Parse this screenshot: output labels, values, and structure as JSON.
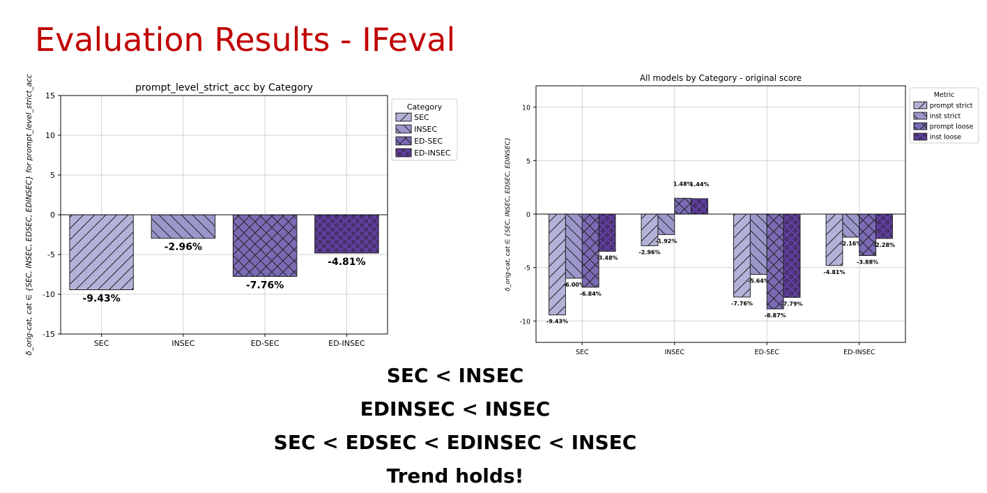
{
  "slide": {
    "title": "Evaluation Results - IFeval",
    "conclusions": [
      "SEC < INSEC",
      "EDINSEC < INSEC",
      "SEC < EDSEC < EDINSEC < INSEC",
      "Trend holds!"
    ]
  },
  "chart_data": [
    {
      "type": "bar",
      "title": "prompt_level_strict_acc by Category",
      "ylabel": "δ_orig-cat, cat ∈ {SEC, INSEC, EDSEC, EDINSEC} for prompt_level_strict_acc",
      "xlabel": "",
      "categories": [
        "SEC",
        "INSEC",
        "ED-SEC",
        "ED-INSEC"
      ],
      "values": [
        -9.43,
        -2.96,
        -7.76,
        -4.81
      ],
      "data_labels": [
        "-9.43%",
        "-2.96%",
        "-7.76%",
        "-4.81%"
      ],
      "ylim": [
        -15,
        15
      ],
      "yticks": [
        -15,
        -10,
        -5,
        0,
        5,
        10,
        15
      ],
      "grid": true,
      "legend": {
        "title": "Category",
        "placement": "outside-right",
        "entries": [
          "SEC",
          "INSEC",
          "ED-SEC",
          "ED-INSEC"
        ]
      },
      "colors": [
        "#b3b3d9",
        "#9b97cb",
        "#7b6bb5",
        "#5e3c99"
      ],
      "hatches": [
        "diag-fwd",
        "diag-back",
        "cross",
        "dots"
      ]
    },
    {
      "type": "bar",
      "title": "All models by Category - original score",
      "ylabel": "δ_orig-cat, cat ∈ {SEC, INSEC, EDSEC, EDINSEC}",
      "xlabel": "",
      "categories": [
        "SEC",
        "INSEC",
        "ED-SEC",
        "ED-INSEC"
      ],
      "series": [
        {
          "name": "prompt strict",
          "values": [
            -9.43,
            -2.96,
            -7.76,
            -4.81
          ],
          "labels": [
            "-9.43%",
            "-2.96%",
            "-7.76%",
            "-4.81%"
          ]
        },
        {
          "name": "inst strict",
          "values": [
            -6.0,
            -1.92,
            -5.64,
            -2.16
          ],
          "labels": [
            "-6.00%",
            "-1.92%",
            "-5.64%",
            "-2.16%"
          ]
        },
        {
          "name": "prompt loose",
          "values": [
            -6.84,
            1.48,
            -8.87,
            -3.88
          ],
          "labels": [
            "-6.84%",
            "1.48%",
            "-8.87%",
            "-3.88%"
          ]
        },
        {
          "name": "inst loose",
          "values": [
            -3.48,
            1.44,
            -7.79,
            -2.28
          ],
          "labels": [
            "-3.48%",
            "1.44%",
            "-7.79%",
            "-2.28%"
          ]
        }
      ],
      "ylim": [
        -12,
        12
      ],
      "yticks": [
        -10,
        -5,
        0,
        5,
        10
      ],
      "grid": true,
      "legend": {
        "title": "Metric",
        "placement": "outside-right",
        "entries": [
          "prompt strict",
          "inst strict",
          "prompt loose",
          "inst loose"
        ]
      },
      "colors": [
        "#b3b3d9",
        "#9b97cb",
        "#7b6bb5",
        "#5e3c99"
      ],
      "hatches": [
        "diag-fwd",
        "diag-back",
        "cross",
        "dots"
      ]
    }
  ]
}
